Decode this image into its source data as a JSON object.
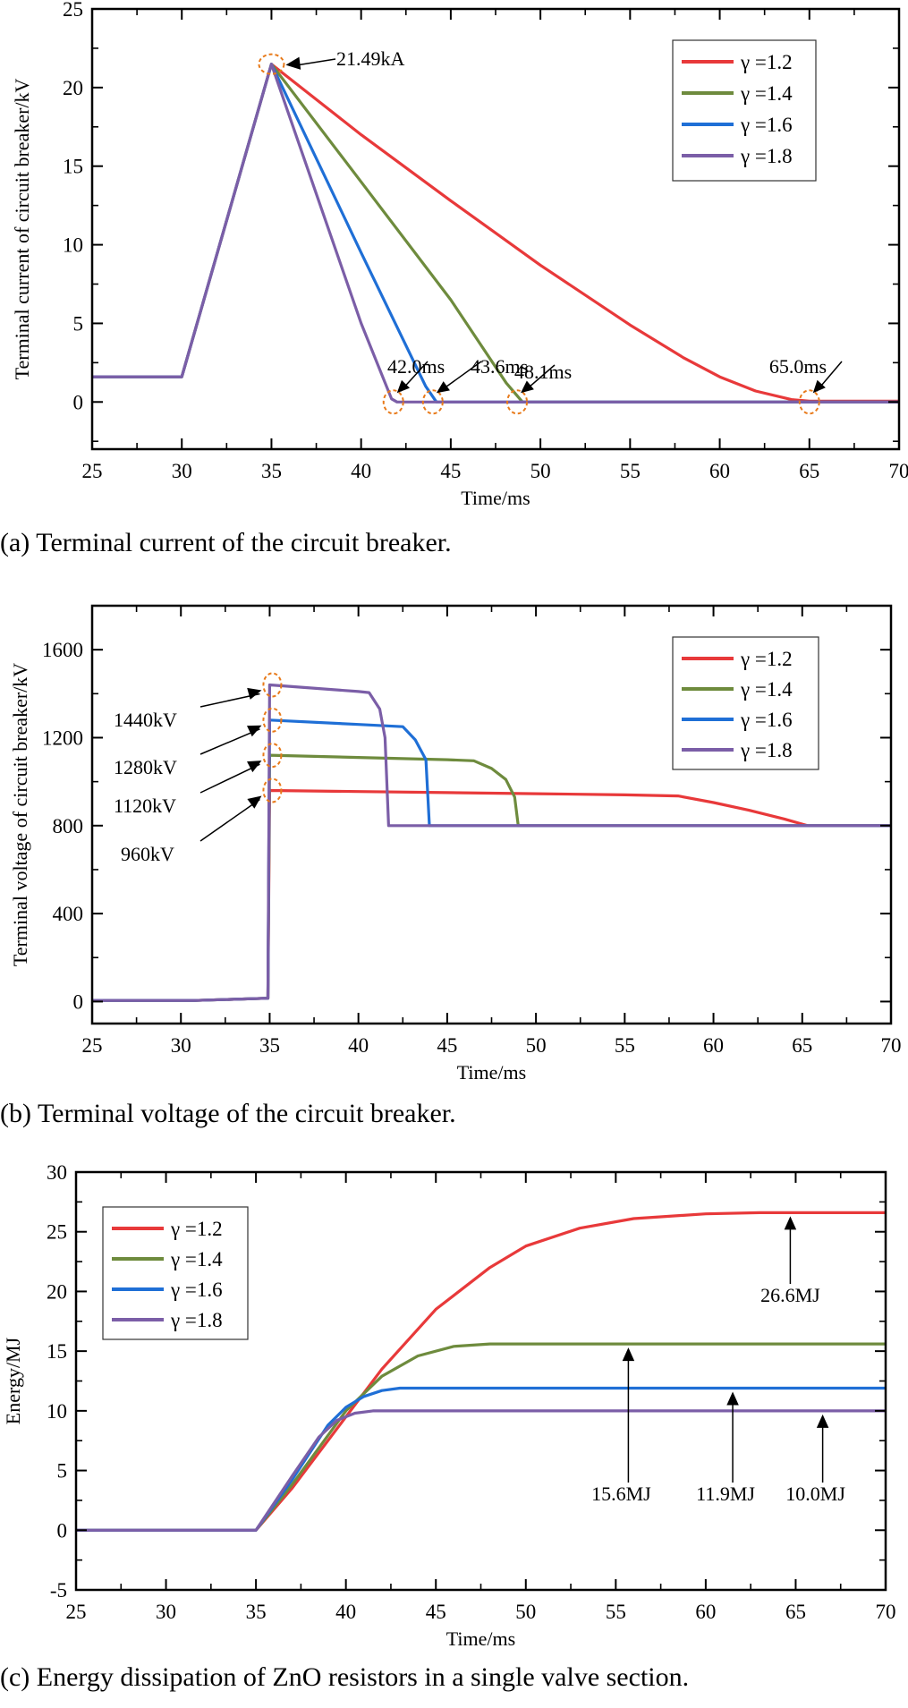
{
  "colors": {
    "gamma_1_2": "#e8393a",
    "gamma_1_4": "#6e8b3d",
    "gamma_1_6": "#1f6fd6",
    "gamma_1_8": "#7b5ea7",
    "marker": "#e87a1a",
    "axis": "#000000"
  },
  "chart_data": [
    {
      "id": "a",
      "type": "line",
      "title": "",
      "caption": "(a) Terminal current of the circuit breaker.",
      "xlabel": "Time/ms",
      "ylabel": "Terminal current of  circuit breaker/kV",
      "xlim": [
        25,
        70
      ],
      "ylim": [
        -3,
        25
      ],
      "xticks": [
        25,
        30,
        35,
        40,
        45,
        50,
        55,
        60,
        65,
        70
      ],
      "yticks": [
        0,
        5,
        10,
        15,
        20,
        25
      ],
      "grid": false,
      "legend_position": "upper right",
      "series": [
        {
          "name": "γ =1.2",
          "x": [
            25,
            30,
            35,
            40,
            45,
            50,
            55,
            58,
            60,
            62,
            64,
            65,
            70
          ],
          "y": [
            1.6,
            1.6,
            21.49,
            17.0,
            12.8,
            8.7,
            4.9,
            2.8,
            1.6,
            0.7,
            0.15,
            0.05,
            0.05
          ]
        },
        {
          "name": "γ =1.4",
          "x": [
            25,
            30,
            35,
            40,
            45,
            48.1,
            49,
            70
          ],
          "y": [
            1.6,
            1.6,
            21.49,
            14.0,
            6.5,
            1.2,
            0,
            0
          ]
        },
        {
          "name": "γ =1.6",
          "x": [
            25,
            30,
            35,
            40,
            43.6,
            44.2,
            70
          ],
          "y": [
            1.6,
            1.6,
            21.49,
            9.5,
            1.0,
            0,
            0
          ]
        },
        {
          "name": "γ =1.8",
          "x": [
            25,
            30,
            35,
            40,
            41.7,
            42.0,
            70
          ],
          "y": [
            1.6,
            1.6,
            21.49,
            5.0,
            0.2,
            0,
            0
          ]
        }
      ],
      "annotations": [
        {
          "text": "21.49kA",
          "x": 35,
          "y": 21.49
        },
        {
          "text": "42.0ms",
          "x": 41.8,
          "y": 0
        },
        {
          "text": "43.6ms",
          "x": 44.0,
          "y": 0
        },
        {
          "text": "48.1ms",
          "x": 48.7,
          "y": 0
        },
        {
          "text": "65.0ms",
          "x": 65.0,
          "y": 0
        }
      ]
    },
    {
      "id": "b",
      "type": "line",
      "title": "",
      "caption": "(b) Terminal voltage of the circuit breaker.",
      "xlabel": "Time/ms",
      "ylabel": "Terminal voltage of  circuit breaker/kV",
      "xlim": [
        25,
        70
      ],
      "ylim": [
        -100,
        1800
      ],
      "xticks": [
        25,
        30,
        35,
        40,
        45,
        50,
        55,
        60,
        65,
        70
      ],
      "yticks": [
        0,
        400,
        800,
        1200,
        1600
      ],
      "grid": false,
      "legend_position": "upper right",
      "series": [
        {
          "name": "γ =1.2",
          "x": [
            25,
            30.8,
            34.9,
            35,
            40,
            45,
            50,
            55,
            58,
            60,
            62,
            64,
            65.3,
            70
          ],
          "y": [
            5,
            5,
            15,
            960,
            955,
            950,
            945,
            940,
            935,
            905,
            870,
            830,
            800,
            800
          ]
        },
        {
          "name": "γ =1.4",
          "x": [
            25,
            30.8,
            34.9,
            35,
            40,
            45,
            46.5,
            47.5,
            48.3,
            48.8,
            49.0,
            70
          ],
          "y": [
            5,
            5,
            15,
            1120,
            1110,
            1100,
            1095,
            1060,
            1010,
            930,
            800,
            800
          ]
        },
        {
          "name": "γ =1.6",
          "x": [
            25,
            30.8,
            34.9,
            35,
            40,
            42.5,
            43.2,
            43.8,
            44.0,
            44.2,
            70
          ],
          "y": [
            5,
            5,
            15,
            1280,
            1260,
            1250,
            1190,
            1100,
            800,
            800,
            800
          ]
        },
        {
          "name": "γ =1.8",
          "x": [
            25,
            30.8,
            34.9,
            35,
            40,
            40.6,
            41.2,
            41.5,
            41.7,
            70
          ],
          "y": [
            5,
            5,
            15,
            1440,
            1410,
            1405,
            1330,
            1200,
            800,
            800
          ]
        }
      ],
      "annotations": [
        {
          "text": "1440kV",
          "x": 35,
          "y": 1440
        },
        {
          "text": "1280kV",
          "x": 35,
          "y": 1280
        },
        {
          "text": "1120kV",
          "x": 35,
          "y": 1120
        },
        {
          "text": "960kV",
          "x": 35,
          "y": 960
        }
      ]
    },
    {
      "id": "c",
      "type": "line",
      "title": "",
      "caption": "(c) Energy dissipation of ZnO resistors in a single valve section.",
      "xlabel": "Time/ms",
      "ylabel": "Energy/MJ",
      "xlim": [
        25,
        70
      ],
      "ylim": [
        -5,
        30
      ],
      "xticks": [
        25,
        30,
        35,
        40,
        45,
        50,
        55,
        60,
        65,
        70
      ],
      "yticks": [
        -5,
        0,
        5,
        10,
        15,
        20,
        25,
        30
      ],
      "grid": false,
      "legend_position": "upper left",
      "series": [
        {
          "name": "γ =1.2",
          "x": [
            25,
            35,
            37,
            40,
            42,
            45,
            48,
            50,
            53,
            56,
            60,
            63,
            65,
            70
          ],
          "y": [
            0,
            0,
            3.5,
            9.5,
            13.5,
            18.5,
            22.0,
            23.8,
            25.3,
            26.1,
            26.5,
            26.6,
            26.6,
            26.6
          ]
        },
        {
          "name": "γ =1.4",
          "x": [
            25,
            35,
            37,
            40,
            42,
            44,
            46,
            48,
            50,
            70
          ],
          "y": [
            0,
            0,
            3.8,
            10.0,
            12.9,
            14.6,
            15.4,
            15.6,
            15.6,
            15.6
          ]
        },
        {
          "name": "γ =1.6",
          "x": [
            25,
            35,
            37,
            39,
            40,
            41,
            42,
            43,
            44,
            70
          ],
          "y": [
            0,
            0,
            4.2,
            8.8,
            10.3,
            11.2,
            11.7,
            11.9,
            11.9,
            11.9
          ]
        },
        {
          "name": "γ =1.8",
          "x": [
            25,
            35,
            37,
            38.5,
            39.5,
            40.5,
            41.5,
            42.5,
            70
          ],
          "y": [
            0,
            0,
            4.5,
            7.8,
            9.2,
            9.8,
            10.0,
            10.0,
            10.0
          ]
        }
      ],
      "annotations": [
        {
          "text": "26.6MJ",
          "x": 64.7,
          "y": 26.6
        },
        {
          "text": "15.6MJ",
          "x": 55.7,
          "y": 15.6
        },
        {
          "text": "11.9MJ",
          "x": 61.5,
          "y": 11.9
        },
        {
          "text": "10.0MJ",
          "x": 66.5,
          "y": 10.0
        }
      ]
    }
  ]
}
